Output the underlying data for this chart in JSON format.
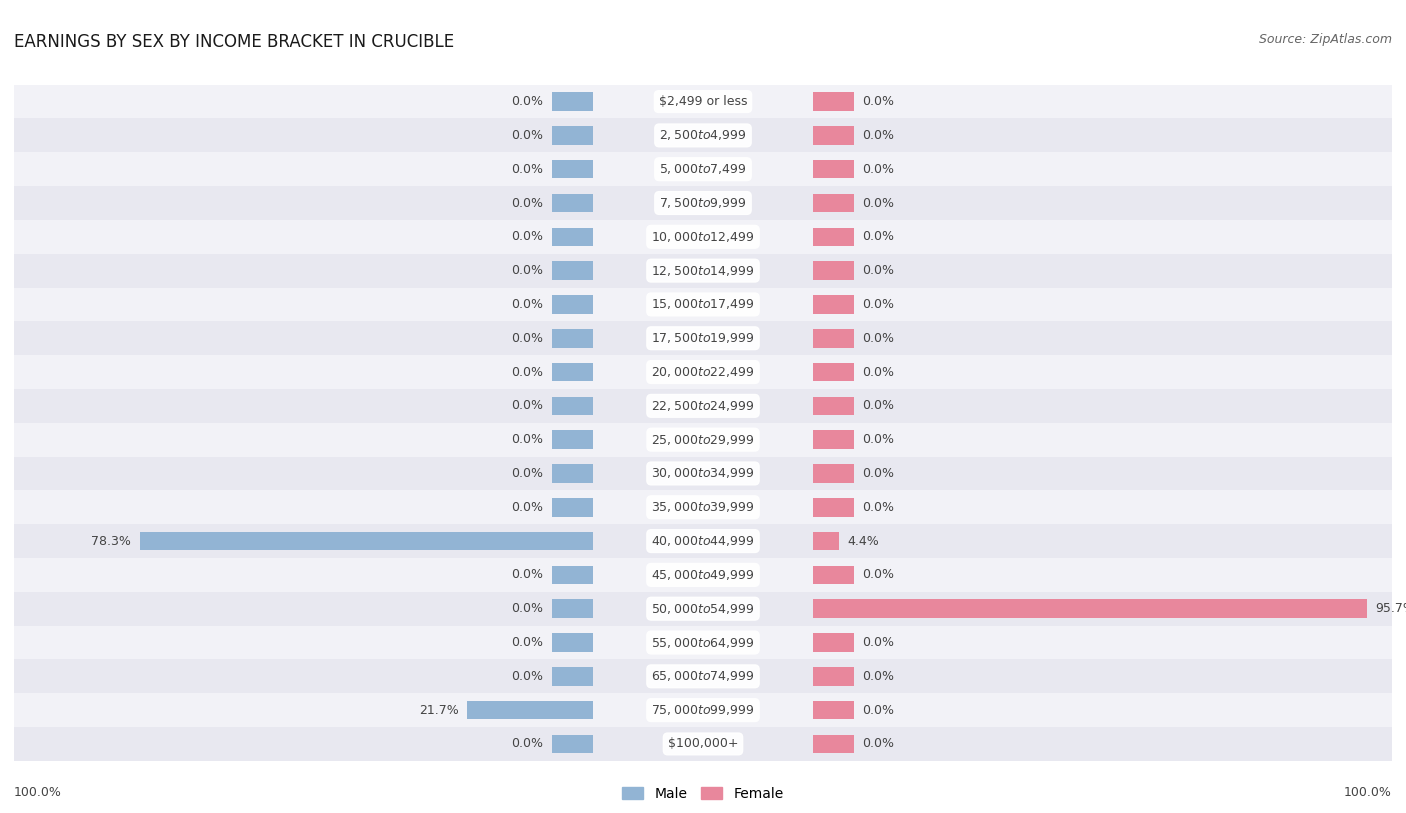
{
  "title": "EARNINGS BY SEX BY INCOME BRACKET IN CRUCIBLE",
  "source": "Source: ZipAtlas.com",
  "categories": [
    "$2,499 or less",
    "$2,500 to $4,999",
    "$5,000 to $7,499",
    "$7,500 to $9,999",
    "$10,000 to $12,499",
    "$12,500 to $14,999",
    "$15,000 to $17,499",
    "$17,500 to $19,999",
    "$20,000 to $22,499",
    "$22,500 to $24,999",
    "$25,000 to $29,999",
    "$30,000 to $34,999",
    "$35,000 to $39,999",
    "$40,000 to $44,999",
    "$45,000 to $49,999",
    "$50,000 to $54,999",
    "$55,000 to $64,999",
    "$65,000 to $74,999",
    "$75,000 to $99,999",
    "$100,000+"
  ],
  "male_values": [
    0.0,
    0.0,
    0.0,
    0.0,
    0.0,
    0.0,
    0.0,
    0.0,
    0.0,
    0.0,
    0.0,
    0.0,
    0.0,
    78.3,
    0.0,
    0.0,
    0.0,
    0.0,
    21.7,
    0.0
  ],
  "female_values": [
    0.0,
    0.0,
    0.0,
    0.0,
    0.0,
    0.0,
    0.0,
    0.0,
    0.0,
    0.0,
    0.0,
    0.0,
    0.0,
    4.4,
    0.0,
    95.7,
    0.0,
    0.0,
    0.0,
    0.0
  ],
  "male_color": "#92b4d4",
  "female_color": "#e8879c",
  "male_label": "Male",
  "female_label": "Female",
  "row_bg_light": "#f2f2f7",
  "row_bg_dark": "#e8e8f0",
  "label_color": "#444444",
  "value_color": "#444444",
  "max_val": 100.0,
  "stub_val": 7.0,
  "title_fontsize": 12,
  "source_fontsize": 9,
  "value_fontsize": 9,
  "cat_fontsize": 9,
  "legend_fontsize": 10,
  "axis_label_left": "100.0%",
  "axis_label_right": "100.0%"
}
